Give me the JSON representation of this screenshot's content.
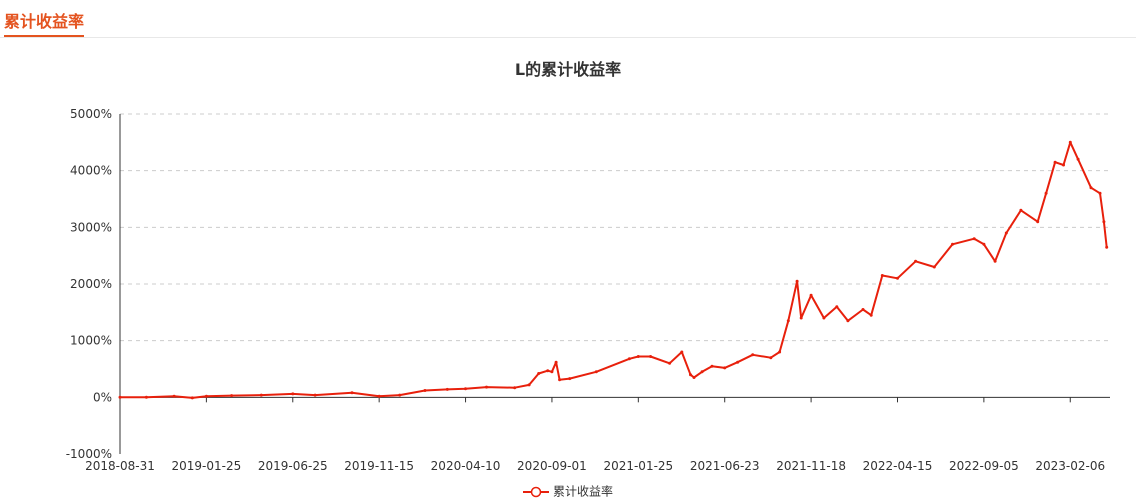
{
  "tab": {
    "title": "累计收益率"
  },
  "chart_data": {
    "type": "line",
    "title": "L的累计收益率",
    "xlabel": "",
    "ylabel": "",
    "x_ticks": [
      "2018-08-31",
      "2019-01-25",
      "2019-06-25",
      "2019-11-15",
      "2020-04-10",
      "2020-09-01",
      "2021-01-25",
      "2021-06-23",
      "2021-11-18",
      "2022-04-15",
      "2022-09-05",
      "2023-02-06"
    ],
    "y_ticks": [
      -1000,
      0,
      1000,
      2000,
      3000,
      4000,
      5000
    ],
    "y_tick_labels": [
      "-1000%",
      "0%",
      "1000%",
      "2000%",
      "3000%",
      "4000%",
      "5000%"
    ],
    "ylim": [
      -1000,
      5000
    ],
    "grid": true,
    "legend_position": "bottom",
    "series": [
      {
        "name": "累计收益率",
        "color": "#e8200c",
        "x": [
          "2018-08-31",
          "2018-10-15",
          "2018-12-01",
          "2019-01-01",
          "2019-01-25",
          "2019-03-10",
          "2019-05-01",
          "2019-06-25",
          "2019-08-01",
          "2019-10-01",
          "2019-11-15",
          "2019-12-20",
          "2020-02-01",
          "2020-03-10",
          "2020-04-10",
          "2020-05-15",
          "2020-07-01",
          "2020-07-25",
          "2020-08-10",
          "2020-08-25",
          "2020-09-01",
          "2020-09-08",
          "2020-09-14",
          "2020-10-01",
          "2020-11-15",
          "2021-01-10",
          "2021-01-25",
          "2021-02-15",
          "2021-03-20",
          "2021-04-10",
          "2021-04-25",
          "2021-05-01",
          "2021-05-15",
          "2021-06-01",
          "2021-06-23",
          "2021-07-15",
          "2021-08-10",
          "2021-09-10",
          "2021-09-25",
          "2021-10-10",
          "2021-10-25",
          "2021-11-01",
          "2021-11-18",
          "2021-12-10",
          "2022-01-01",
          "2022-01-20",
          "2022-02-15",
          "2022-03-01",
          "2022-03-20",
          "2022-04-15",
          "2022-05-15",
          "2022-06-15",
          "2022-07-15",
          "2022-08-20",
          "2022-09-05",
          "2022-09-25",
          "2022-10-15",
          "2022-11-10",
          "2022-12-10",
          "2022-12-25",
          "2023-01-10",
          "2023-01-25",
          "2023-02-06",
          "2023-02-20",
          "2023-03-15",
          "2023-03-31",
          "2023-04-07",
          "2023-04-12"
        ],
        "values": [
          0,
          0,
          20,
          -10,
          20,
          30,
          40,
          60,
          40,
          80,
          20,
          40,
          120,
          140,
          150,
          180,
          170,
          220,
          420,
          470,
          450,
          620,
          310,
          330,
          450,
          680,
          720,
          720,
          600,
          800,
          400,
          350,
          450,
          550,
          520,
          620,
          750,
          700,
          800,
          1350,
          2050,
          1400,
          1800,
          1400,
          1600,
          1350,
          1550,
          1450,
          2150,
          2100,
          2400,
          2300,
          2700,
          2800,
          2700,
          2400,
          2900,
          3300,
          3100,
          3600,
          4150,
          4100,
          4500,
          4200,
          3700,
          3600,
          3100,
          2650
        ]
      }
    ]
  }
}
